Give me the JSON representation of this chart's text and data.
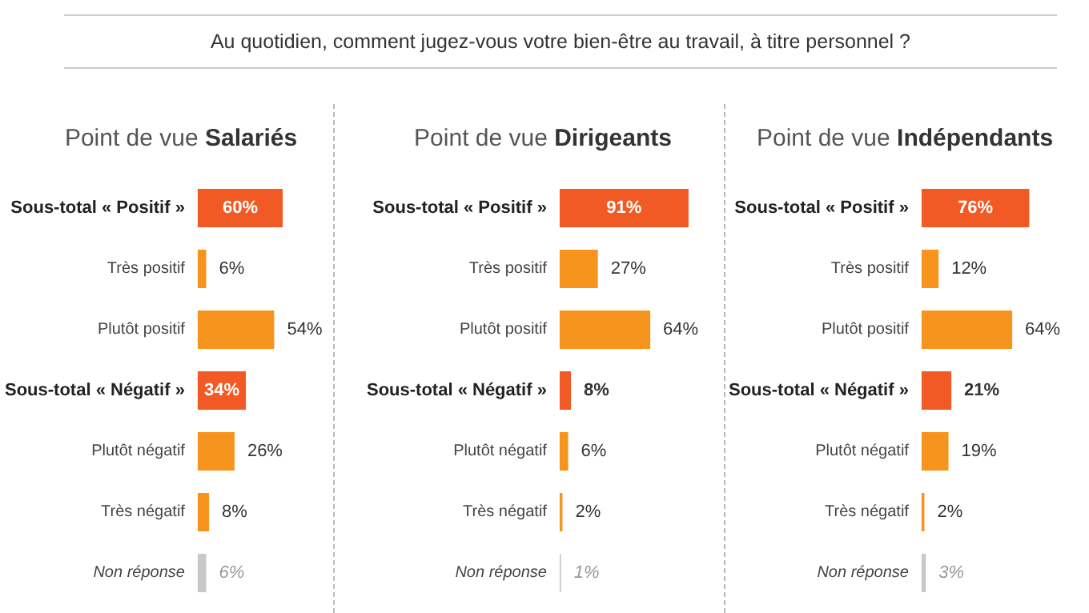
{
  "chart_data": [
    {
      "type": "bar",
      "orientation": "horizontal",
      "title": "Point de vue Salariés",
      "annotations": [
        "Au quotidien, comment jugez-vous votre bien-être au travail, à titre personnel ?"
      ],
      "categories": [
        "Sous-total « Positif »",
        "Très positif",
        "Plutôt positif",
        "Sous-total « Négatif »",
        "Plutôt négatif",
        "Très négatif",
        "Non réponse"
      ],
      "values": [
        60,
        6,
        54,
        34,
        26,
        8,
        6
      ],
      "value_labels": [
        "60%",
        "6%",
        "54%",
        "34%",
        "26%",
        "8%",
        "6%"
      ],
      "colors": [
        "#f15a24",
        "#f7941d",
        "#f7941d",
        "#f15a24",
        "#f7941d",
        "#f7941d",
        "#c8c8c8"
      ]
    },
    {
      "type": "bar",
      "orientation": "horizontal",
      "title": "Point de vue Dirigeants",
      "categories": [
        "Sous-total « Positif »",
        "Très positif",
        "Plutôt positif",
        "Sous-total « Négatif »",
        "Plutôt négatif",
        "Très négatif",
        "Non réponse"
      ],
      "values": [
        91,
        27,
        64,
        8,
        6,
        2,
        1
      ],
      "value_labels": [
        "91%",
        "27%",
        "64%",
        "8%",
        "6%",
        "2%",
        "1%"
      ],
      "colors": [
        "#f15a24",
        "#f7941d",
        "#f7941d",
        "#f15a24",
        "#f7941d",
        "#f7941d",
        "#c8c8c8"
      ]
    },
    {
      "type": "bar",
      "orientation": "horizontal",
      "title": "Point de vue Indépendants",
      "categories": [
        "Sous-total « Positif »",
        "Très positif",
        "Plutôt positif",
        "Sous-total « Négatif »",
        "Plutôt négatif",
        "Très négatif",
        "Non réponse"
      ],
      "values": [
        76,
        12,
        64,
        21,
        19,
        2,
        3
      ],
      "value_labels": [
        "76%",
        "12%",
        "64%",
        "21%",
        "19%",
        "2%",
        "3%"
      ],
      "colors": [
        "#f15a24",
        "#f7941d",
        "#f7941d",
        "#f15a24",
        "#f7941d",
        "#f7941d",
        "#c8c8c8"
      ]
    }
  ]
}
